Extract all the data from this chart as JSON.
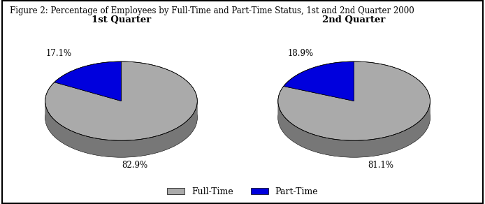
{
  "title": "Figure 2: Percentage of Employees by Full-Time and Part-Time Status, 1st and 2nd Quarter 2000",
  "q1_title": "1st Quarter",
  "q2_title": "2nd Quarter",
  "q1_values": [
    82.9,
    17.1
  ],
  "q2_values": [
    81.1,
    18.9
  ],
  "q1_labels": [
    "82.9%",
    "17.1%"
  ],
  "q2_labels": [
    "81.1%",
    "18.9%"
  ],
  "colors_top": [
    "#aaaaaa",
    "#0000dd"
  ],
  "colors_side": [
    "#777777",
    "#000088"
  ],
  "dark_side": "#555555",
  "legend_labels": [
    "Full-Time",
    "Part-Time"
  ],
  "background_color": "#ffffff",
  "border_color": "#000000",
  "label_fontsize": 8.5,
  "title_fontsize": 8.5,
  "subtitle_fontsize": 9.5,
  "legend_fontsize": 9
}
